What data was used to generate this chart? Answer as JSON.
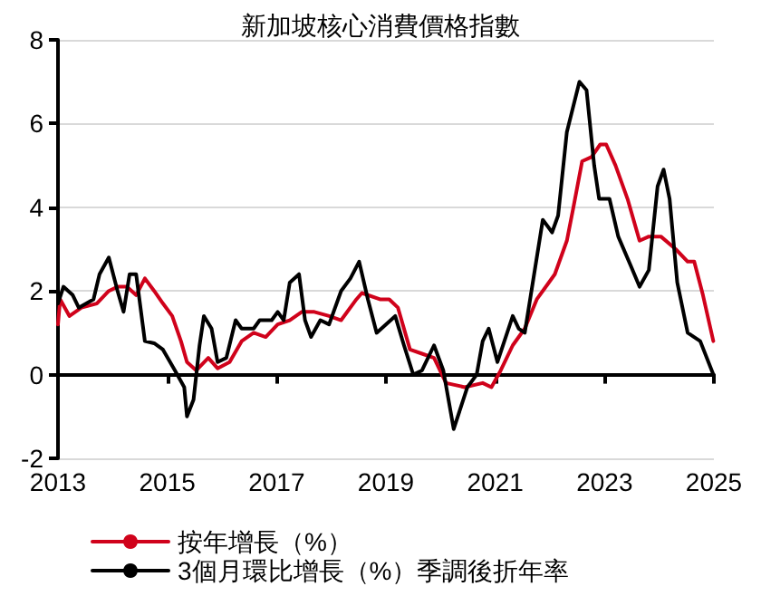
{
  "chart_data": {
    "type": "line",
    "title": "新加坡核心消費價格指數",
    "xlim": [
      2013,
      2025
    ],
    "xticks": [
      2013,
      2015,
      2017,
      2019,
      2021,
      2023,
      2025
    ],
    "ylim": [
      -2,
      8
    ],
    "yticks": [
      -2,
      0,
      2,
      4,
      6,
      8
    ],
    "grid": "y",
    "legend": "bottom left",
    "marker": "none",
    "line_style": "solid",
    "series": [
      {
        "name": "按年增長（%）",
        "color": "#d0021b",
        "x": [
          2013.0,
          2013.04,
          2013.21,
          2013.43,
          2013.71,
          2013.93,
          2014.09,
          2014.26,
          2014.43,
          2014.59,
          2014.76,
          2014.92,
          2015.09,
          2015.25,
          2015.36,
          2015.53,
          2015.75,
          2015.92,
          2016.14,
          2016.36,
          2016.58,
          2016.8,
          2017.02,
          2017.24,
          2017.46,
          2017.69,
          2017.96,
          2018.18,
          2018.46,
          2018.56,
          2018.89,
          2019.06,
          2019.22,
          2019.44,
          2019.66,
          2019.88,
          2020.1,
          2020.44,
          2020.77,
          2020.93,
          2021.1,
          2021.32,
          2021.54,
          2021.76,
          2021.98,
          2022.09,
          2022.31,
          2022.43,
          2022.59,
          2022.76,
          2022.92,
          2023.03,
          2023.2,
          2023.42,
          2023.64,
          2023.81,
          2024.03,
          2024.3,
          2024.52,
          2024.64,
          2024.8,
          2024.99
        ],
        "values": [
          1.2,
          1.8,
          1.4,
          1.6,
          1.7,
          2.0,
          2.1,
          2.1,
          1.9,
          2.3,
          2.0,
          1.7,
          1.4,
          0.8,
          0.3,
          0.1,
          0.4,
          0.15,
          0.3,
          0.8,
          1.0,
          0.9,
          1.2,
          1.3,
          1.5,
          1.5,
          1.4,
          1.3,
          1.8,
          1.95,
          1.8,
          1.8,
          1.6,
          0.6,
          0.5,
          0.4,
          -0.2,
          -0.3,
          -0.2,
          -0.3,
          0.1,
          0.7,
          1.1,
          1.8,
          2.2,
          2.4,
          3.2,
          4.0,
          5.1,
          5.2,
          5.5,
          5.5,
          5.0,
          4.2,
          3.2,
          3.3,
          3.3,
          3.0,
          2.7,
          2.7,
          1.9,
          0.8
        ]
      },
      {
        "name": "3個月環比增長（%）季調後折年率",
        "color": "#000000",
        "x": [
          2013.0,
          2013.1,
          2013.27,
          2013.38,
          2013.65,
          2013.76,
          2013.93,
          2014.09,
          2014.2,
          2014.31,
          2014.43,
          2014.59,
          2014.76,
          2014.92,
          2015.14,
          2015.31,
          2015.36,
          2015.48,
          2015.59,
          2015.67,
          2015.81,
          2015.92,
          2016.08,
          2016.25,
          2016.36,
          2016.58,
          2016.69,
          2016.91,
          2017.02,
          2017.13,
          2017.24,
          2017.41,
          2017.52,
          2017.63,
          2017.8,
          2017.96,
          2018.18,
          2018.35,
          2018.51,
          2018.67,
          2018.83,
          2019.0,
          2019.17,
          2019.33,
          2019.5,
          2019.66,
          2019.88,
          2020.05,
          2020.24,
          2020.49,
          2020.66,
          2020.77,
          2020.88,
          2021.04,
          2021.32,
          2021.43,
          2021.54,
          2021.65,
          2021.87,
          2022.04,
          2022.15,
          2022.31,
          2022.54,
          2022.67,
          2022.81,
          2022.9,
          2023.09,
          2023.25,
          2023.48,
          2023.64,
          2023.81,
          2023.97,
          2024.08,
          2024.19,
          2024.33,
          2024.52,
          2024.75,
          2024.99
        ],
        "values": [
          1.7,
          2.1,
          1.9,
          1.6,
          1.8,
          2.4,
          2.8,
          2.0,
          1.5,
          2.4,
          2.4,
          0.8,
          0.75,
          0.6,
          0.1,
          -0.3,
          -1.0,
          -0.6,
          0.7,
          1.4,
          1.1,
          0.3,
          0.4,
          1.3,
          1.1,
          1.1,
          1.3,
          1.3,
          1.5,
          1.3,
          2.2,
          2.4,
          1.3,
          0.9,
          1.3,
          1.2,
          2.0,
          2.3,
          2.7,
          1.8,
          1.0,
          1.2,
          1.4,
          0.7,
          0.0,
          0.1,
          0.7,
          0.1,
          -1.3,
          -0.3,
          0.0,
          0.8,
          1.1,
          0.3,
          1.4,
          1.1,
          1.0,
          1.9,
          3.7,
          3.4,
          3.8,
          5.8,
          7.0,
          6.8,
          5.0,
          4.2,
          4.2,
          3.3,
          2.6,
          2.1,
          2.5,
          4.5,
          4.9,
          4.2,
          2.2,
          1.0,
          0.8,
          0.0
        ]
      }
    ]
  }
}
